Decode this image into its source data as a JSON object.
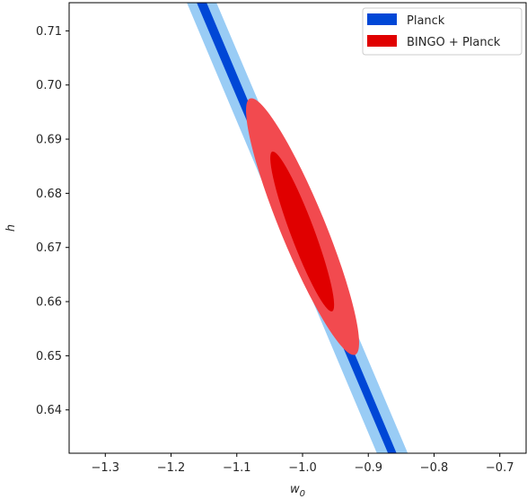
{
  "chart_data": {
    "type": "contour",
    "xlabel": "w",
    "xlabel_subscript": "0",
    "ylabel": "h",
    "xlim": [
      -1.355,
      -0.66
    ],
    "ylim": [
      0.632,
      0.7152
    ],
    "xticks": [
      {
        "value": -1.3,
        "label": "−1.3"
      },
      {
        "value": -1.2,
        "label": "−1.2"
      },
      {
        "value": -1.1,
        "label": "−1.1"
      },
      {
        "value": -1.0,
        "label": "−1.0"
      },
      {
        "value": -0.9,
        "label": "−0.9"
      },
      {
        "value": -0.8,
        "label": "−0.8"
      },
      {
        "value": -0.7,
        "label": "−0.7"
      }
    ],
    "yticks": [
      {
        "value": 0.64,
        "label": "0.64"
      },
      {
        "value": 0.65,
        "label": "0.65"
      },
      {
        "value": 0.66,
        "label": "0.66"
      },
      {
        "value": 0.67,
        "label": "0.67"
      },
      {
        "value": 0.68,
        "label": "0.68"
      },
      {
        "value": 0.69,
        "label": "0.69"
      },
      {
        "value": 0.7,
        "label": "0.70"
      },
      {
        "value": 0.71,
        "label": "0.71"
      }
    ],
    "grid": false,
    "legend_position": "top-right",
    "series": [
      {
        "name": "Planck",
        "color": "#0047d6",
        "outer_color": "#99ccf5",
        "kind": "band",
        "outer_band": [
          [
            -1.176,
            0.7152
          ],
          [
            -1.131,
            0.7152
          ],
          [
            -0.84,
            0.632
          ],
          [
            -0.887,
            0.632
          ]
        ],
        "inner_band": [
          [
            -1.161,
            0.7152
          ],
          [
            -1.146,
            0.7152
          ],
          [
            -0.857,
            0.632
          ],
          [
            -0.87,
            0.632
          ]
        ]
      },
      {
        "name": "BINGO + Planck",
        "color": "#e00000",
        "outer_color": "#f24a4f",
        "kind": "ellipse",
        "center": [
          -1.002,
          0.6732
        ],
        "outer_ellipse": {
          "p1": [
            -1.08,
            0.6975
          ],
          "p2": [
            -0.92,
            0.6502
          ],
          "half_width_w": 0.034
        },
        "inner_ellipse": {
          "p1": [
            -1.046,
            0.6877
          ],
          "p2": [
            -0.955,
            0.6582
          ],
          "half_width_w": 0.018
        }
      }
    ]
  }
}
